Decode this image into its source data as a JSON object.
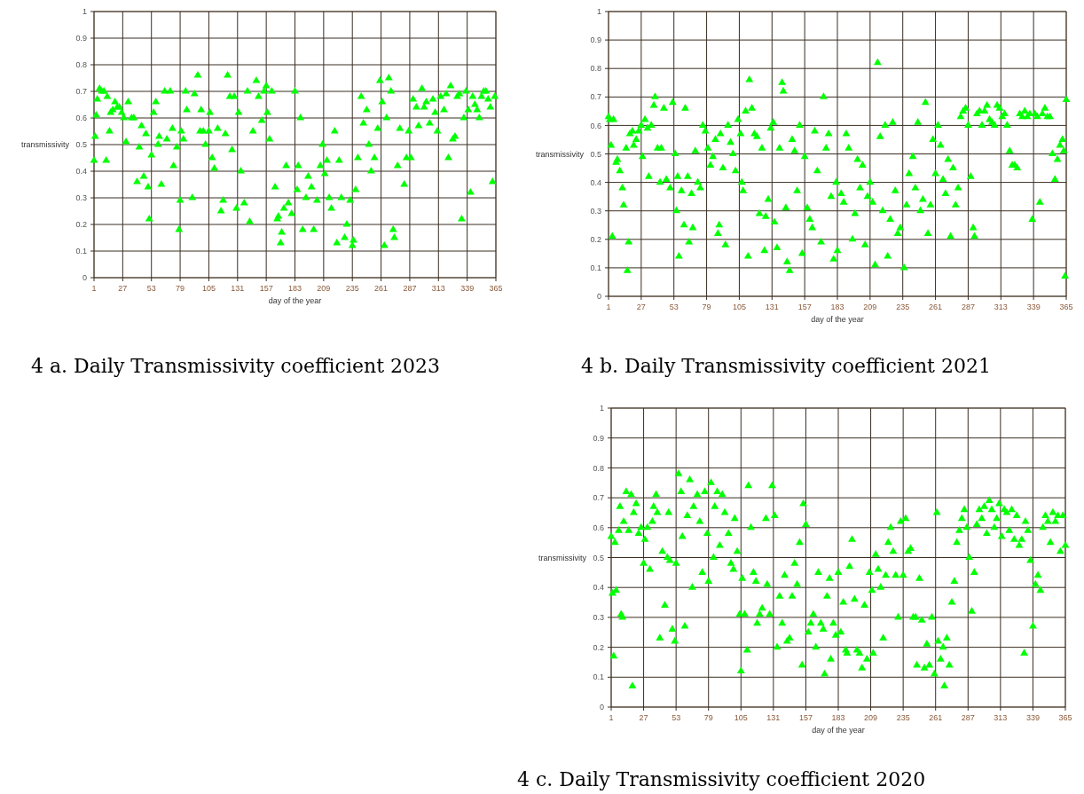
{
  "chart_data": [
    {
      "type": "scatter",
      "title": "4 a. Daily Transmissivity coefficient 2023",
      "xlabel": "day of the year",
      "ylabel": "transmissivity",
      "color": "#00ff00",
      "marker": "triangle",
      "grid": true,
      "xlim": [
        1,
        365
      ],
      "ylim": [
        0,
        1
      ],
      "xticks": [
        1,
        27,
        53,
        79,
        105,
        131,
        157,
        183,
        209,
        235,
        261,
        287,
        313,
        339,
        365
      ],
      "yticks": [
        0,
        0.1,
        0.2,
        0.3,
        0.4,
        0.5,
        0.6,
        0.7,
        0.8,
        0.9,
        1
      ],
      "x": [
        1,
        2,
        3,
        4,
        6,
        8,
        10,
        12,
        13,
        15,
        16,
        18,
        20,
        22,
        24,
        26,
        28,
        30,
        32,
        35,
        37,
        40,
        42,
        44,
        46,
        48,
        50,
        51,
        53,
        55,
        57,
        59,
        60,
        62,
        65,
        67,
        70,
        72,
        73,
        76,
        78,
        79,
        80,
        82,
        84,
        85,
        90,
        92,
        95,
        97,
        98,
        100,
        102,
        105,
        106,
        108,
        110,
        113,
        116,
        118,
        120,
        122,
        124,
        126,
        128,
        130,
        132,
        134,
        137,
        140,
        142,
        145,
        148,
        150,
        153,
        155,
        157,
        158,
        160,
        162,
        165,
        167,
        168,
        170,
        171,
        173,
        175,
        177,
        180,
        183,
        185,
        186,
        188,
        190,
        193,
        195,
        198,
        200,
        203,
        206,
        208,
        210,
        212,
        214,
        216,
        219,
        221,
        223,
        225,
        228,
        230,
        233,
        235,
        236,
        238,
        240,
        243,
        245,
        248,
        250,
        252,
        255,
        258,
        260,
        262,
        264,
        266,
        268,
        270,
        272,
        273,
        276,
        278,
        282,
        284,
        286,
        288,
        290,
        293,
        295,
        298,
        300,
        302,
        305,
        308,
        310,
        312,
        315,
        318,
        320,
        322,
        324,
        326,
        328,
        330,
        332,
        334,
        336,
        338,
        340,
        342,
        344,
        346,
        348,
        350,
        352,
        354,
        356,
        358,
        360,
        362,
        364
      ],
      "values": [
        0.44,
        0.53,
        0.61,
        0.67,
        0.71,
        0.7,
        0.7,
        0.44,
        0.68,
        0.55,
        0.62,
        0.63,
        0.66,
        0.64,
        0.64,
        0.62,
        0.6,
        0.51,
        0.66,
        0.6,
        0.6,
        0.36,
        0.49,
        0.57,
        0.38,
        0.54,
        0.34,
        0.22,
        0.46,
        0.62,
        0.66,
        0.5,
        0.53,
        0.35,
        0.7,
        0.52,
        0.7,
        0.56,
        0.42,
        0.49,
        0.18,
        0.29,
        0.55,
        0.52,
        0.7,
        0.63,
        0.3,
        0.69,
        0.76,
        0.55,
        0.63,
        0.55,
        0.5,
        0.55,
        0.62,
        0.45,
        0.41,
        0.56,
        0.25,
        0.29,
        0.54,
        0.76,
        0.68,
        0.48,
        0.68,
        0.26,
        0.62,
        0.4,
        0.28,
        0.7,
        0.21,
        0.55,
        0.74,
        0.68,
        0.59,
        0.7,
        0.72,
        0.62,
        0.52,
        0.7,
        0.34,
        0.22,
        0.23,
        0.13,
        0.17,
        0.26,
        0.42,
        0.28,
        0.24,
        0.7,
        0.33,
        0.42,
        0.6,
        0.18,
        0.3,
        0.38,
        0.34,
        0.18,
        0.29,
        0.42,
        0.5,
        0.39,
        0.44,
        0.3,
        0.26,
        0.55,
        0.13,
        0.44,
        0.3,
        0.15,
        0.2,
        0.29,
        0.12,
        0.14,
        0.33,
        0.45,
        0.68,
        0.58,
        0.63,
        0.5,
        0.4,
        0.45,
        0.56,
        0.74,
        0.66,
        0.12,
        0.6,
        0.75,
        0.7,
        0.18,
        0.15,
        0.42,
        0.56,
        0.35,
        0.45,
        0.55,
        0.45,
        0.67,
        0.64,
        0.57,
        0.71,
        0.64,
        0.66,
        0.58,
        0.67,
        0.62,
        0.55,
        0.68,
        0.63,
        0.69,
        0.45,
        0.72,
        0.52,
        0.53,
        0.68,
        0.69,
        0.22,
        0.6,
        0.7,
        0.63,
        0.32,
        0.68,
        0.65,
        0.63,
        0.6,
        0.68,
        0.7,
        0.7,
        0.67,
        0.64,
        0.36,
        0.68
      ]
    },
    {
      "type": "scatter",
      "title": "4 b. Daily Transmissivity coefficient 2021",
      "xlabel": "day of the year",
      "ylabel": "transmissivity",
      "color": "#00ff00",
      "marker": "triangle",
      "grid": true,
      "xlim": [
        1,
        365
      ],
      "ylim": [
        0,
        1
      ],
      "xticks": [
        1,
        27,
        53,
        79,
        105,
        131,
        157,
        183,
        209,
        235,
        261,
        287,
        313,
        339,
        365
      ],
      "yticks": [
        0,
        0.1,
        0.2,
        0.3,
        0.4,
        0.5,
        0.6,
        0.7,
        0.8,
        0.9,
        1
      ],
      "x": [
        1,
        2,
        3,
        4,
        5,
        7,
        8,
        10,
        12,
        13,
        15,
        16,
        17,
        18,
        20,
        21,
        23,
        25,
        27,
        28,
        30,
        32,
        33,
        35,
        37,
        38,
        40,
        42,
        43,
        45,
        47,
        50,
        52,
        54,
        55,
        56,
        57,
        59,
        61,
        62,
        64,
        65,
        67,
        68,
        70,
        72,
        74,
        76,
        78,
        80,
        82,
        84,
        86,
        88,
        89,
        90,
        92,
        94,
        96,
        98,
        100,
        102,
        104,
        106,
        107,
        108,
        110,
        112,
        113,
        115,
        117,
        119,
        121,
        123,
        125,
        126,
        128,
        130,
        132,
        133,
        135,
        137,
        139,
        140,
        142,
        143,
        145,
        147,
        149,
        151,
        153,
        155,
        157,
        159,
        161,
        163,
        165,
        167,
        170,
        172,
        174,
        176,
        178,
        180,
        182,
        183,
        186,
        188,
        190,
        192,
        195,
        197,
        199,
        201,
        203,
        205,
        207,
        209,
        211,
        213,
        215,
        217,
        219,
        221,
        223,
        225,
        227,
        229,
        231,
        233,
        236,
        238,
        240,
        243,
        245,
        247,
        249,
        251,
        253,
        255,
        257,
        259,
        261,
        263,
        265,
        267,
        269,
        271,
        273,
        275,
        277,
        279,
        281,
        283,
        285,
        287,
        289,
        291,
        292,
        294,
        296,
        298,
        300,
        302,
        304,
        306,
        308,
        310,
        312,
        314,
        316,
        318,
        320,
        322,
        324,
        326,
        328,
        330,
        332,
        334,
        336,
        338,
        340,
        342,
        344,
        346,
        348,
        350,
        352,
        354,
        356,
        358,
        360,
        362,
        363,
        364,
        365
      ],
      "values": [
        0.63,
        0.62,
        0.53,
        0.21,
        0.62,
        0.47,
        0.48,
        0.44,
        0.38,
        0.32,
        0.52,
        0.09,
        0.19,
        0.57,
        0.58,
        0.53,
        0.55,
        0.58,
        0.6,
        0.49,
        0.62,
        0.59,
        0.42,
        0.6,
        0.67,
        0.7,
        0.52,
        0.4,
        0.52,
        0.66,
        0.41,
        0.38,
        0.68,
        0.5,
        0.3,
        0.42,
        0.14,
        0.37,
        0.25,
        0.66,
        0.42,
        0.19,
        0.36,
        0.24,
        0.51,
        0.4,
        0.38,
        0.6,
        0.58,
        0.52,
        0.46,
        0.49,
        0.55,
        0.22,
        0.25,
        0.57,
        0.45,
        0.18,
        0.6,
        0.54,
        0.5,
        0.44,
        0.62,
        0.57,
        0.4,
        0.37,
        0.65,
        0.14,
        0.76,
        0.66,
        0.57,
        0.56,
        0.29,
        0.52,
        0.16,
        0.28,
        0.34,
        0.59,
        0.61,
        0.26,
        0.17,
        0.52,
        0.75,
        0.72,
        0.31,
        0.12,
        0.09,
        0.55,
        0.51,
        0.37,
        0.6,
        0.15,
        0.49,
        0.31,
        0.27,
        0.24,
        0.58,
        0.44,
        0.19,
        0.7,
        0.52,
        0.57,
        0.35,
        0.13,
        0.4,
        0.16,
        0.36,
        0.33,
        0.57,
        0.52,
        0.2,
        0.29,
        0.48,
        0.38,
        0.46,
        0.18,
        0.35,
        0.4,
        0.33,
        0.11,
        0.82,
        0.56,
        0.3,
        0.6,
        0.14,
        0.27,
        0.61,
        0.37,
        0.22,
        0.24,
        0.1,
        0.32,
        0.43,
        0.49,
        0.38,
        0.61,
        0.3,
        0.34,
        0.68,
        0.22,
        0.32,
        0.55,
        0.43,
        0.6,
        0.53,
        0.41,
        0.36,
        0.48,
        0.21,
        0.45,
        0.32,
        0.38,
        0.63,
        0.65,
        0.66,
        0.6,
        0.42,
        0.24,
        0.21,
        0.64,
        0.65,
        0.6,
        0.65,
        0.67,
        0.62,
        0.61,
        0.6,
        0.67,
        0.66,
        0.63,
        0.64,
        0.6,
        0.51,
        0.46,
        0.46,
        0.45,
        0.64,
        0.63,
        0.65,
        0.63,
        0.64,
        0.27,
        0.64,
        0.63,
        0.33,
        0.64,
        0.66,
        0.63,
        0.63,
        0.5,
        0.41,
        0.48,
        0.53,
        0.55,
        0.51,
        0.07,
        0.69
      ]
    },
    {
      "type": "scatter",
      "title": "4 c. Daily Transmissivity coefficient 2020",
      "xlabel": "day of the year",
      "ylabel": "transmissivity",
      "color": "#00ff00",
      "marker": "triangle",
      "grid": true,
      "xlim": [
        1,
        365
      ],
      "ylim": [
        0,
        1
      ],
      "xticks": [
        1,
        27,
        53,
        79,
        105,
        131,
        157,
        183,
        209,
        235,
        261,
        287,
        313,
        339,
        365
      ],
      "yticks": [
        0,
        0.1,
        0.2,
        0.3,
        0.4,
        0.5,
        0.6,
        0.7,
        0.8,
        0.9,
        1
      ],
      "x": [
        1,
        2,
        3,
        4,
        5,
        7,
        8,
        9,
        10,
        11,
        13,
        15,
        17,
        18,
        19,
        21,
        23,
        25,
        27,
        28,
        30,
        32,
        34,
        35,
        37,
        38,
        40,
        42,
        44,
        46,
        47,
        48,
        50,
        52,
        53,
        55,
        57,
        58,
        60,
        62,
        64,
        66,
        67,
        70,
        72,
        74,
        76,
        78,
        79,
        81,
        83,
        84,
        86,
        88,
        90,
        92,
        95,
        97,
        99,
        100,
        102,
        104,
        105,
        106,
        108,
        110,
        111,
        113,
        115,
        117,
        118,
        120,
        122,
        125,
        126,
        128,
        130,
        132,
        134,
        136,
        138,
        140,
        142,
        144,
        146,
        148,
        150,
        152,
        154,
        155,
        157,
        159,
        161,
        163,
        165,
        167,
        169,
        171,
        172,
        174,
        176,
        177,
        179,
        181,
        183,
        185,
        187,
        189,
        190,
        192,
        194,
        196,
        198,
        200,
        202,
        204,
        206,
        208,
        210,
        211,
        213,
        215,
        217,
        219,
        221,
        223,
        225,
        227,
        229,
        231,
        233,
        235,
        237,
        239,
        241,
        243,
        245,
        246,
        248,
        250,
        252,
        254,
        256,
        258,
        260,
        262,
        263,
        265,
        267,
        268,
        270,
        272,
        274,
        276,
        278,
        280,
        282,
        284,
        286,
        288,
        290,
        292,
        294,
        296,
        298,
        300,
        302,
        304,
        306,
        308,
        310,
        312,
        314,
        316,
        318,
        320,
        322,
        324,
        326,
        328,
        330,
        332,
        333,
        335,
        337,
        339,
        341,
        343,
        345,
        347,
        349,
        351,
        353,
        355,
        357,
        359,
        361,
        363,
        365
      ],
      "values": [
        0.57,
        0.38,
        0.17,
        0.55,
        0.39,
        0.59,
        0.67,
        0.31,
        0.3,
        0.62,
        0.72,
        0.59,
        0.71,
        0.07,
        0.65,
        0.68,
        0.58,
        0.6,
        0.48,
        0.56,
        0.6,
        0.46,
        0.62,
        0.67,
        0.71,
        0.65,
        0.23,
        0.52,
        0.34,
        0.5,
        0.65,
        0.49,
        0.26,
        0.22,
        0.48,
        0.78,
        0.72,
        0.57,
        0.27,
        0.64,
        0.76,
        0.4,
        0.67,
        0.71,
        0.62,
        0.45,
        0.72,
        0.58,
        0.42,
        0.75,
        0.5,
        0.67,
        0.72,
        0.54,
        0.71,
        0.65,
        0.58,
        0.48,
        0.46,
        0.63,
        0.52,
        0.31,
        0.12,
        0.43,
        0.31,
        0.19,
        0.74,
        0.6,
        0.45,
        0.42,
        0.28,
        0.31,
        0.33,
        0.63,
        0.41,
        0.31,
        0.74,
        0.64,
        0.2,
        0.37,
        0.28,
        0.44,
        0.22,
        0.23,
        0.37,
        0.48,
        0.41,
        0.55,
        0.14,
        0.68,
        0.61,
        0.25,
        0.28,
        0.31,
        0.2,
        0.45,
        0.28,
        0.26,
        0.11,
        0.37,
        0.43,
        0.16,
        0.28,
        0.24,
        0.45,
        0.25,
        0.35,
        0.19,
        0.18,
        0.47,
        0.56,
        0.36,
        0.19,
        0.18,
        0.13,
        0.34,
        0.16,
        0.45,
        0.39,
        0.18,
        0.51,
        0.46,
        0.4,
        0.23,
        0.44,
        0.55,
        0.6,
        0.52,
        0.44,
        0.3,
        0.62,
        0.44,
        0.63,
        0.52,
        0.53,
        0.3,
        0.3,
        0.14,
        0.43,
        0.29,
        0.13,
        0.21,
        0.14,
        0.3,
        0.11,
        0.65,
        0.22,
        0.16,
        0.2,
        0.07,
        0.23,
        0.14,
        0.35,
        0.42,
        0.55,
        0.59,
        0.63,
        0.66,
        0.6,
        0.5,
        0.32,
        0.45,
        0.61,
        0.66,
        0.63,
        0.67,
        0.58,
        0.69,
        0.66,
        0.6,
        0.63,
        0.68,
        0.57,
        0.66,
        0.65,
        0.59,
        0.66,
        0.56,
        0.64,
        0.54,
        0.56,
        0.18,
        0.62,
        0.59,
        0.49,
        0.27,
        0.41,
        0.44,
        0.39,
        0.6,
        0.64,
        0.62,
        0.55,
        0.65,
        0.62,
        0.64,
        0.52,
        0.64,
        0.54
      ]
    }
  ]
}
